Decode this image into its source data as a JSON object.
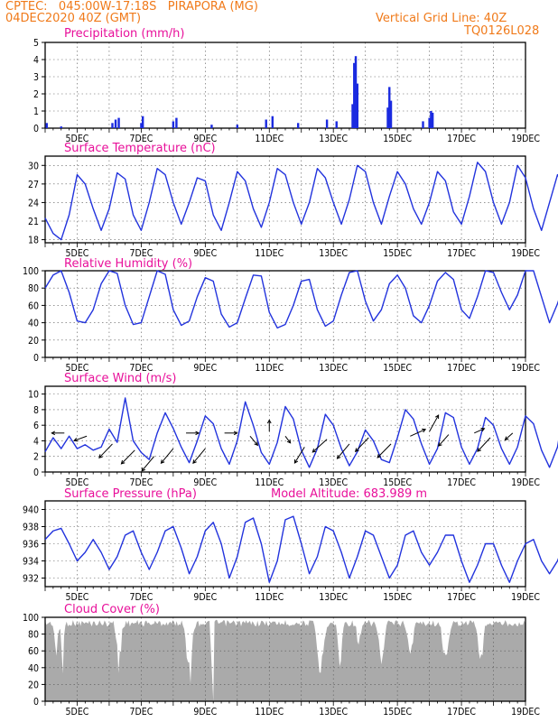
{
  "header": {
    "left_line1": "CPTEC:   045:00W-17:18S   PIRAPORA (MG)",
    "left_line2": "04DEC2020 40Z (GMT)",
    "right_line1": "Vertical Grid Line: 40Z",
    "right_line2": "TQ0126L028"
  },
  "x_labels": [
    "5DEC",
    "7DEC",
    "9DEC",
    "11DEC",
    "13DEC",
    "15DEC",
    "17DEC",
    "19DEC"
  ],
  "colors": {
    "line": "#2233dd",
    "bar": "#1a2ae0",
    "cloud": "#aaaaaa",
    "title": "#e8109a",
    "header": "#f07a1a"
  },
  "chart_data": [
    {
      "type": "bar",
      "title": "Precipitation (mm/h)",
      "ylim": [
        0,
        5
      ],
      "yticks": [
        0,
        1,
        2,
        3,
        4,
        5
      ],
      "x": [
        "4.05DEC",
        "4.5DEC",
        "6.1DEC",
        "6.2DEC",
        "6.3DEC",
        "7.0DEC",
        "7.05DEC",
        "8.0DEC",
        "8.1DEC",
        "9.2DEC",
        "10.0DEC",
        "10.9DEC",
        "11.1DEC",
        "11.9DEC",
        "12.8DEC",
        "13.1DEC",
        "13.6DEC",
        "13.65DEC",
        "13.7DEC",
        "13.75DEC",
        "14.7DEC",
        "14.75DEC",
        "14.8DEC",
        "15.8DEC",
        "16.0DEC",
        "16.05DEC",
        "16.1DEC"
      ],
      "values": [
        0.3,
        0.1,
        0.3,
        0.5,
        0.6,
        0.3,
        0.7,
        0.4,
        0.6,
        0.2,
        0.2,
        0.5,
        0.7,
        0.3,
        0.5,
        0.4,
        1.4,
        3.8,
        4.2,
        2.6,
        1.2,
        2.4,
        1.6,
        0.4,
        0.6,
        1.0,
        0.9
      ]
    },
    {
      "type": "line",
      "title": "Surface Temperature (nC)",
      "ylim": [
        17.5,
        31.5
      ],
      "yticks": [
        18,
        21,
        24,
        27,
        30
      ],
      "x_start": 4.0,
      "x_step": 0.25,
      "values": [
        21.5,
        19,
        18,
        22,
        28.5,
        27,
        23,
        19.5,
        23,
        28.8,
        27.8,
        22,
        19.5,
        24,
        29.5,
        28.5,
        24,
        20.5,
        24,
        28,
        27.5,
        22,
        19.5,
        24,
        29,
        27.5,
        23,
        20,
        24,
        29.5,
        28.5,
        24,
        20.5,
        24,
        29.5,
        28,
        24,
        20.5,
        24.5,
        30,
        29,
        24,
        20.5,
        25,
        29,
        27,
        23,
        20.5,
        24,
        29,
        27.5,
        22.5,
        20.5,
        25,
        30.5,
        29,
        24,
        20.5,
        24,
        30,
        28,
        23,
        19.5,
        24,
        28.5,
        26,
        22.5,
        20,
        22,
        27,
        26.5,
        21.5,
        19.5,
        23,
        27,
        26,
        22.5,
        20,
        22,
        26,
        25,
        21.5,
        19,
        22.5,
        28.5,
        27,
        22.5,
        20.5,
        23.5,
        28,
        27,
        22.5,
        20,
        24,
        29,
        28,
        23.5,
        20.5,
        24,
        29.5,
        28.5,
        24,
        20.5,
        24.5,
        29.5,
        28,
        24,
        20.5,
        23.5,
        30,
        29.5,
        27
      ]
    },
    {
      "type": "line",
      "title": "Relative Humidity (%)",
      "ylim": [
        0,
        100
      ],
      "yticks": [
        0,
        20,
        40,
        60,
        80,
        100
      ],
      "x_start": 4.0,
      "x_step": 0.25,
      "values": [
        80,
        95,
        100,
        75,
        42,
        40,
        55,
        85,
        100,
        97,
        60,
        38,
        40,
        70,
        100,
        96,
        55,
        37,
        42,
        70,
        92,
        88,
        50,
        35,
        40,
        68,
        95,
        94,
        52,
        34,
        38,
        60,
        88,
        90,
        55,
        36,
        42,
        72,
        98,
        100,
        65,
        42,
        55,
        85,
        95,
        80,
        48,
        40,
        60,
        88,
        98,
        90,
        55,
        45,
        70,
        100,
        98,
        75,
        55,
        72,
        100,
        100,
        70,
        40,
        62,
        90,
        98,
        85,
        52,
        44,
        66,
        95,
        97,
        80,
        50,
        40,
        62,
        88,
        90,
        68,
        42,
        35,
        58,
        85,
        90,
        75,
        45,
        38,
        55,
        80,
        88,
        70,
        40,
        34,
        50,
        78,
        80,
        62,
        36,
        32,
        38,
        45
      ]
    },
    {
      "type": "line",
      "title": "Surface Wind (m/s)",
      "ylim": [
        0,
        11
      ],
      "yticks": [
        0,
        2,
        4,
        6,
        8,
        10
      ],
      "x_start": 4.0,
      "x_step": 0.25,
      "values": [
        2.6,
        4.4,
        3.0,
        4.6,
        3.0,
        3.5,
        2.8,
        3.2,
        5.5,
        3.8,
        9.5,
        4.0,
        2.5,
        1.6,
        5.0,
        7.6,
        5.6,
        3.2,
        1.2,
        4.0,
        7.2,
        6.2,
        3.0,
        1.0,
        4.0,
        9.0,
        6.0,
        2.5,
        1.0,
        3.8,
        8.4,
        6.8,
        2.8,
        0.6,
        3.0,
        7.4,
        6.0,
        3.0,
        0.8,
        2.6,
        5.4,
        4.0,
        1.6,
        1.2,
        4.4,
        8.0,
        6.8,
        3.6,
        1.0,
        3.0,
        7.6,
        7.0,
        3.2,
        1.0,
        3.0,
        7.0,
        6.0,
        3.0,
        1.0,
        3.2,
        7.2,
        6.2,
        2.8,
        0.6,
        3.2,
        9.6,
        7.0,
        2.8,
        0.6,
        3.0,
        8.2,
        6.6,
        3.0,
        1.0,
        3.0,
        7.6,
        6.4,
        3.6,
        1.0,
        2.6,
        6.8,
        6.0,
        2.6,
        0.8,
        3.4,
        8.8,
        9.2,
        5.6,
        2.4
      ]
    },
    {
      "type": "line",
      "title": "Surface Pressure (hPa)",
      "annotation": "Model Altitude: 683.989 m",
      "ylim": [
        931,
        941
      ],
      "yticks": [
        932,
        934,
        936,
        938,
        940
      ],
      "x_start": 4.0,
      "x_step": 0.25,
      "values": [
        936.5,
        937.5,
        937.8,
        936,
        934,
        935,
        936.5,
        935,
        933,
        934.5,
        937,
        937.5,
        935,
        933,
        935,
        937.5,
        938,
        935.5,
        932.5,
        934.5,
        937.5,
        938.5,
        936,
        932,
        934.5,
        938.5,
        939,
        936,
        931.5,
        934,
        938.8,
        939.2,
        936,
        932.5,
        934.5,
        938,
        937.5,
        935,
        932,
        934.5,
        937.5,
        937,
        934.5,
        932,
        933.5,
        937,
        937.5,
        935,
        933.5,
        935,
        937,
        937,
        934,
        931.5,
        933.5,
        936,
        936,
        933.5,
        931.5,
        934,
        936,
        936.5,
        934,
        932.5,
        934,
        936.5,
        937.5,
        934.5,
        932,
        934,
        938,
        938.5,
        935,
        932,
        934,
        937.5,
        938,
        934.5,
        931.5,
        933.5,
        937,
        937.5,
        934.5,
        932,
        934,
        938.5,
        939,
        935,
        932,
        933.5,
        937,
        937.5,
        934,
        931.5,
        933,
        934
      ]
    },
    {
      "type": "area",
      "title": "Cloud Cover (%)",
      "ylim": [
        0,
        100
      ],
      "yticks": [
        0,
        20,
        40,
        60,
        80,
        100
      ]
    }
  ]
}
